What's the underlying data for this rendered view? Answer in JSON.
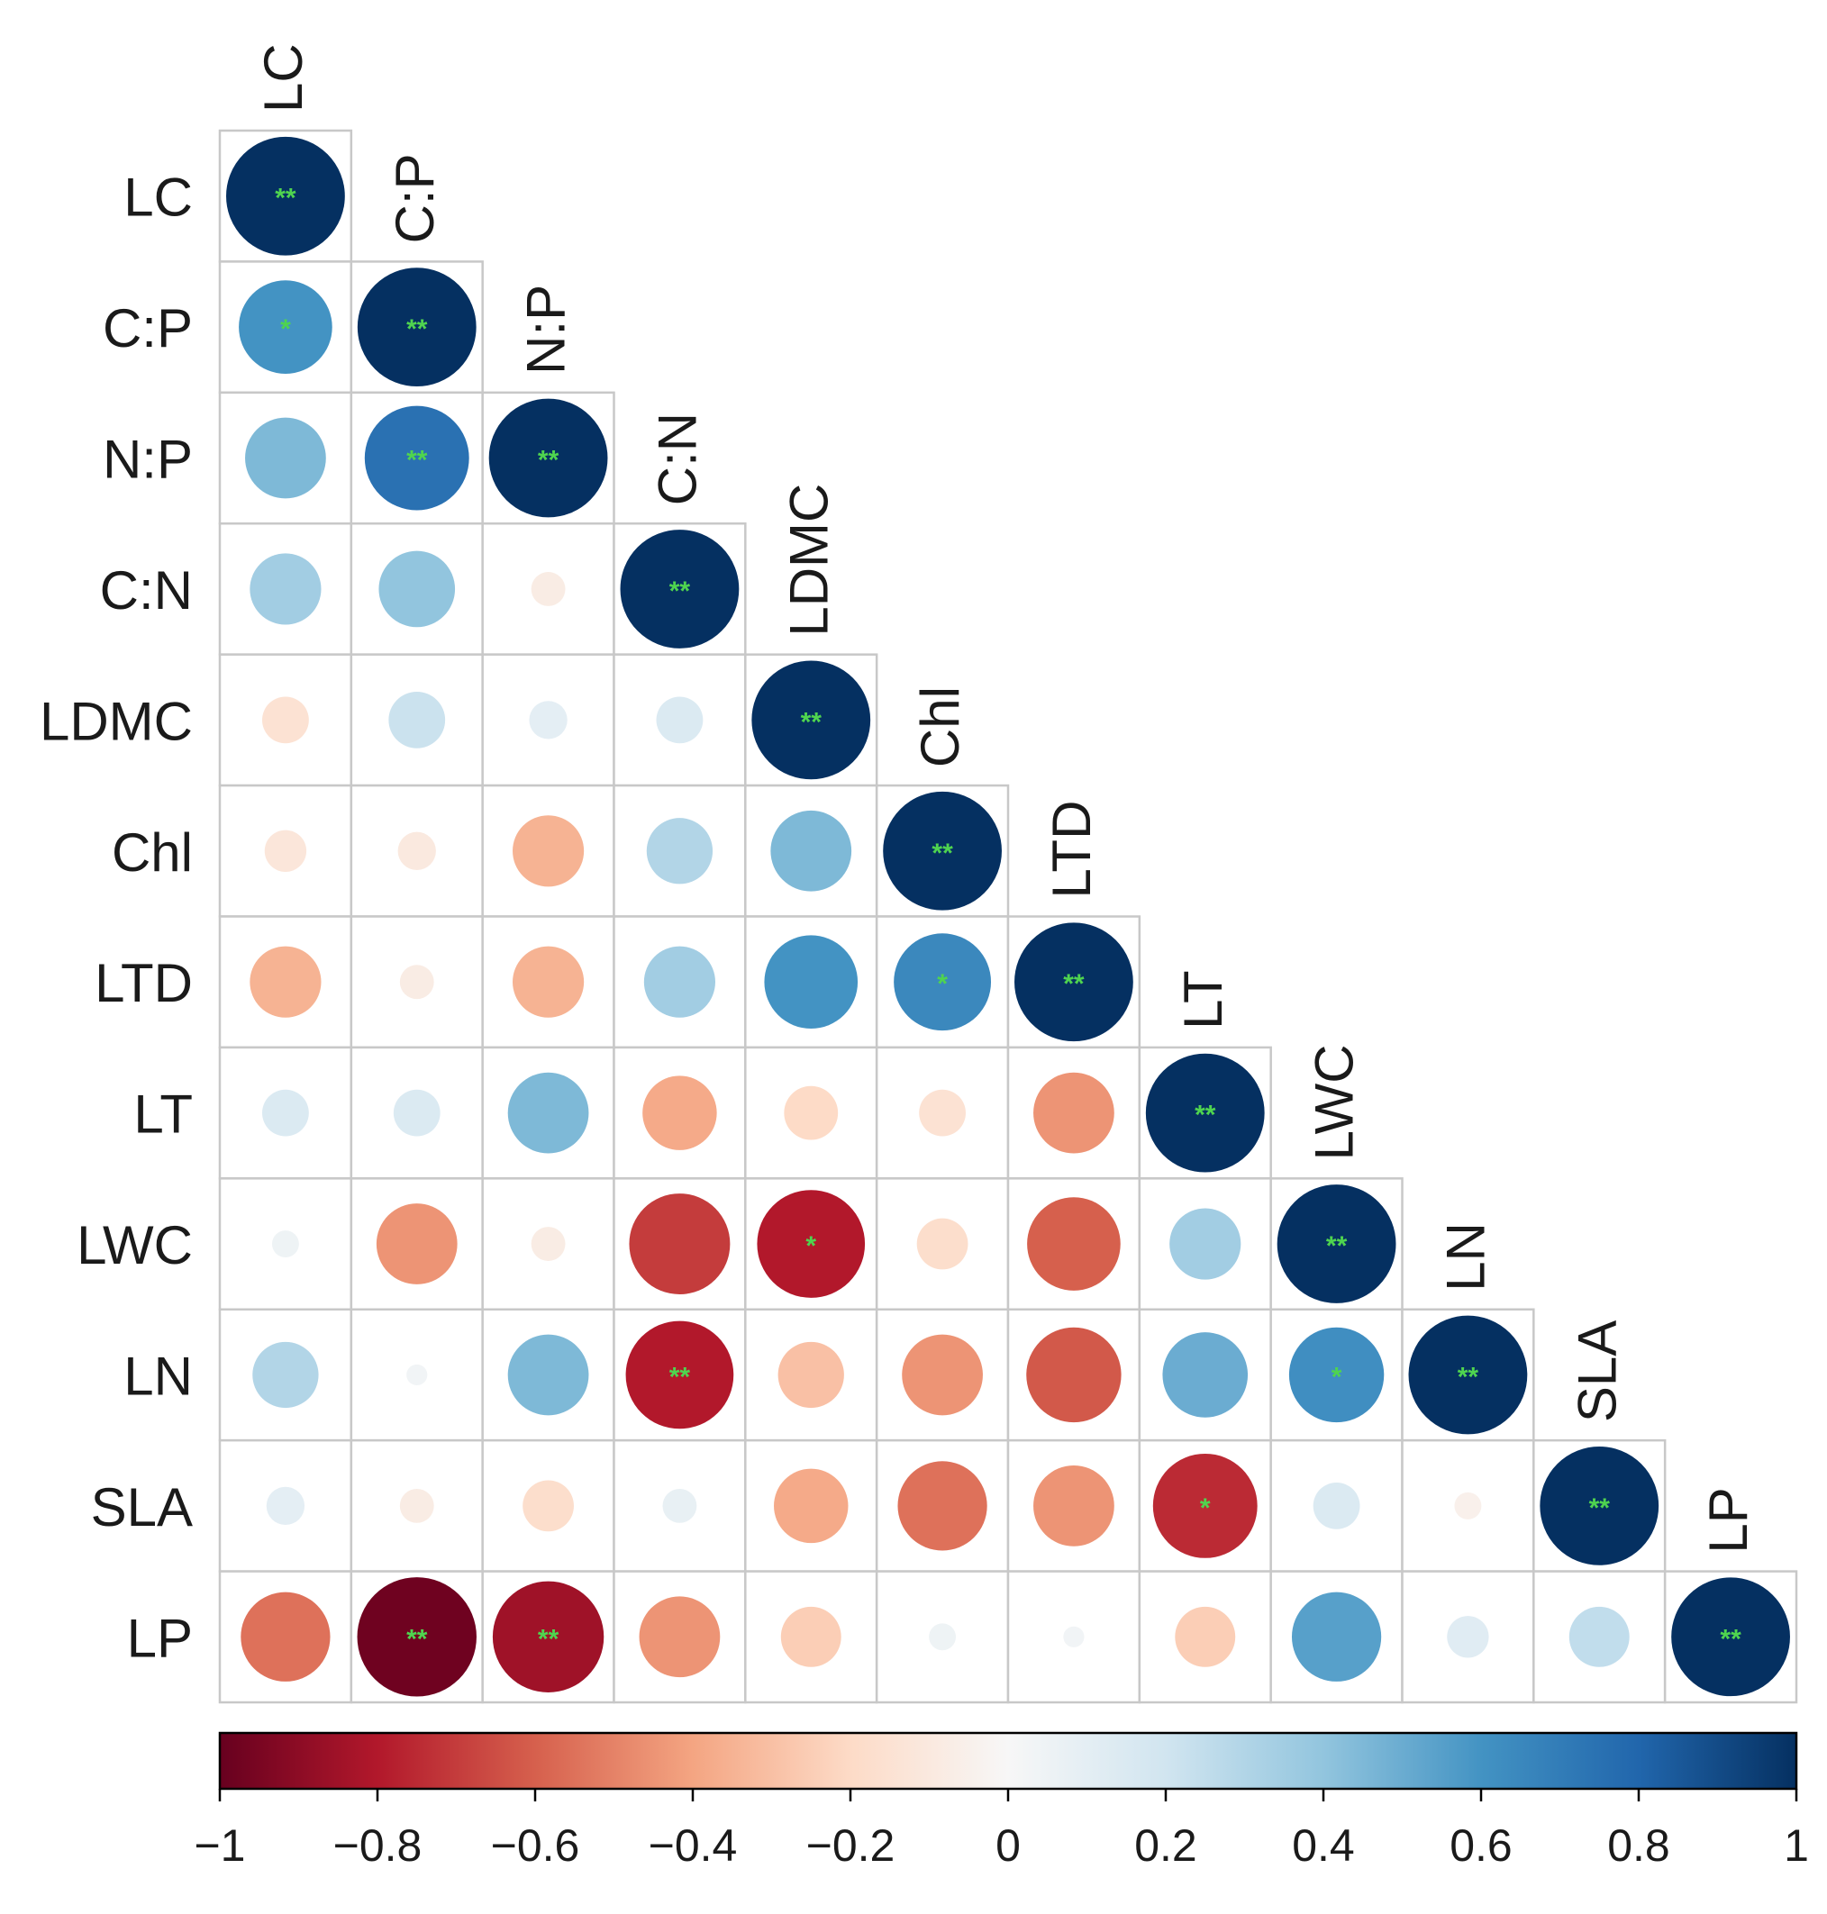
{
  "chart_data": {
    "type": "heatmap",
    "subtype": "correlation-lower-triangle",
    "variables": [
      "LC",
      "C:P",
      "N:P",
      "C:N",
      "LDMC",
      "Chl",
      "LTD",
      "LT",
      "LWC",
      "LN",
      "SLA",
      "LP"
    ],
    "matrix": [
      [
        1.0
      ],
      [
        0.6,
        1.0
      ],
      [
        0.45,
        0.75,
        1.0
      ],
      [
        0.35,
        0.4,
        -0.08,
        1.0
      ],
      [
        -0.15,
        0.22,
        0.1,
        0.15,
        1.0
      ],
      [
        -0.12,
        -0.1,
        -0.35,
        0.3,
        0.45,
        1.0
      ],
      [
        -0.35,
        -0.08,
        -0.35,
        0.35,
        0.6,
        0.65,
        1.0
      ],
      [
        0.15,
        0.15,
        0.45,
        -0.38,
        -0.2,
        -0.15,
        -0.45,
        1.0
      ],
      [
        0.05,
        -0.45,
        -0.08,
        -0.7,
        -0.8,
        -0.18,
        -0.6,
        0.35,
        1.0
      ],
      [
        0.3,
        0.03,
        0.45,
        -0.8,
        -0.3,
        -0.45,
        -0.62,
        0.5,
        0.62,
        1.0
      ],
      [
        0.1,
        -0.08,
        -0.18,
        0.08,
        -0.38,
        -0.55,
        -0.45,
        -0.75,
        0.15,
        -0.05,
        1.0
      ],
      [
        -0.55,
        -0.98,
        -0.85,
        -0.45,
        -0.25,
        0.05,
        0.03,
        -0.25,
        0.55,
        0.12,
        0.25,
        1.0
      ]
    ],
    "significance": [
      [
        "**"
      ],
      [
        "*",
        "**"
      ],
      [
        "",
        "**",
        "**"
      ],
      [
        "",
        "",
        "",
        "**"
      ],
      [
        "",
        "",
        "",
        "",
        "**"
      ],
      [
        "",
        "",
        "",
        "",
        "",
        "**"
      ],
      [
        "",
        "",
        "",
        "",
        "",
        "*",
        "**"
      ],
      [
        "",
        "",
        "",
        "",
        "",
        "",
        "",
        "**"
      ],
      [
        "",
        "",
        "",
        "",
        "*",
        "",
        "",
        "",
        "**"
      ],
      [
        "",
        "",
        "",
        "**",
        "",
        "",
        "",
        "",
        "*",
        "**"
      ],
      [
        "",
        "",
        "",
        "",
        "",
        "",
        "",
        "*",
        "",
        "",
        "**"
      ],
      [
        "",
        "**",
        "**",
        "",
        "",
        "",
        "",
        "",
        "",
        "",
        "",
        "**"
      ]
    ],
    "colorbar": {
      "range": [
        -1,
        1
      ],
      "tick_labels": [
        "−1",
        "−0.8",
        "−0.6",
        "−0.4",
        "−0.2",
        "0",
        "0.2",
        "0.4",
        "0.6",
        "0.8",
        "1"
      ],
      "tick_values": [
        -1,
        -0.8,
        -0.6,
        -0.4,
        -0.2,
        0,
        0.2,
        0.4,
        0.6,
        0.8,
        1
      ]
    },
    "colors": {
      "negative_end": "#67001F",
      "neutral": "#F7F7F7",
      "positive_end": "#053061",
      "significance_marker": "#4FD44F",
      "grid": "#C8C8C8"
    }
  }
}
